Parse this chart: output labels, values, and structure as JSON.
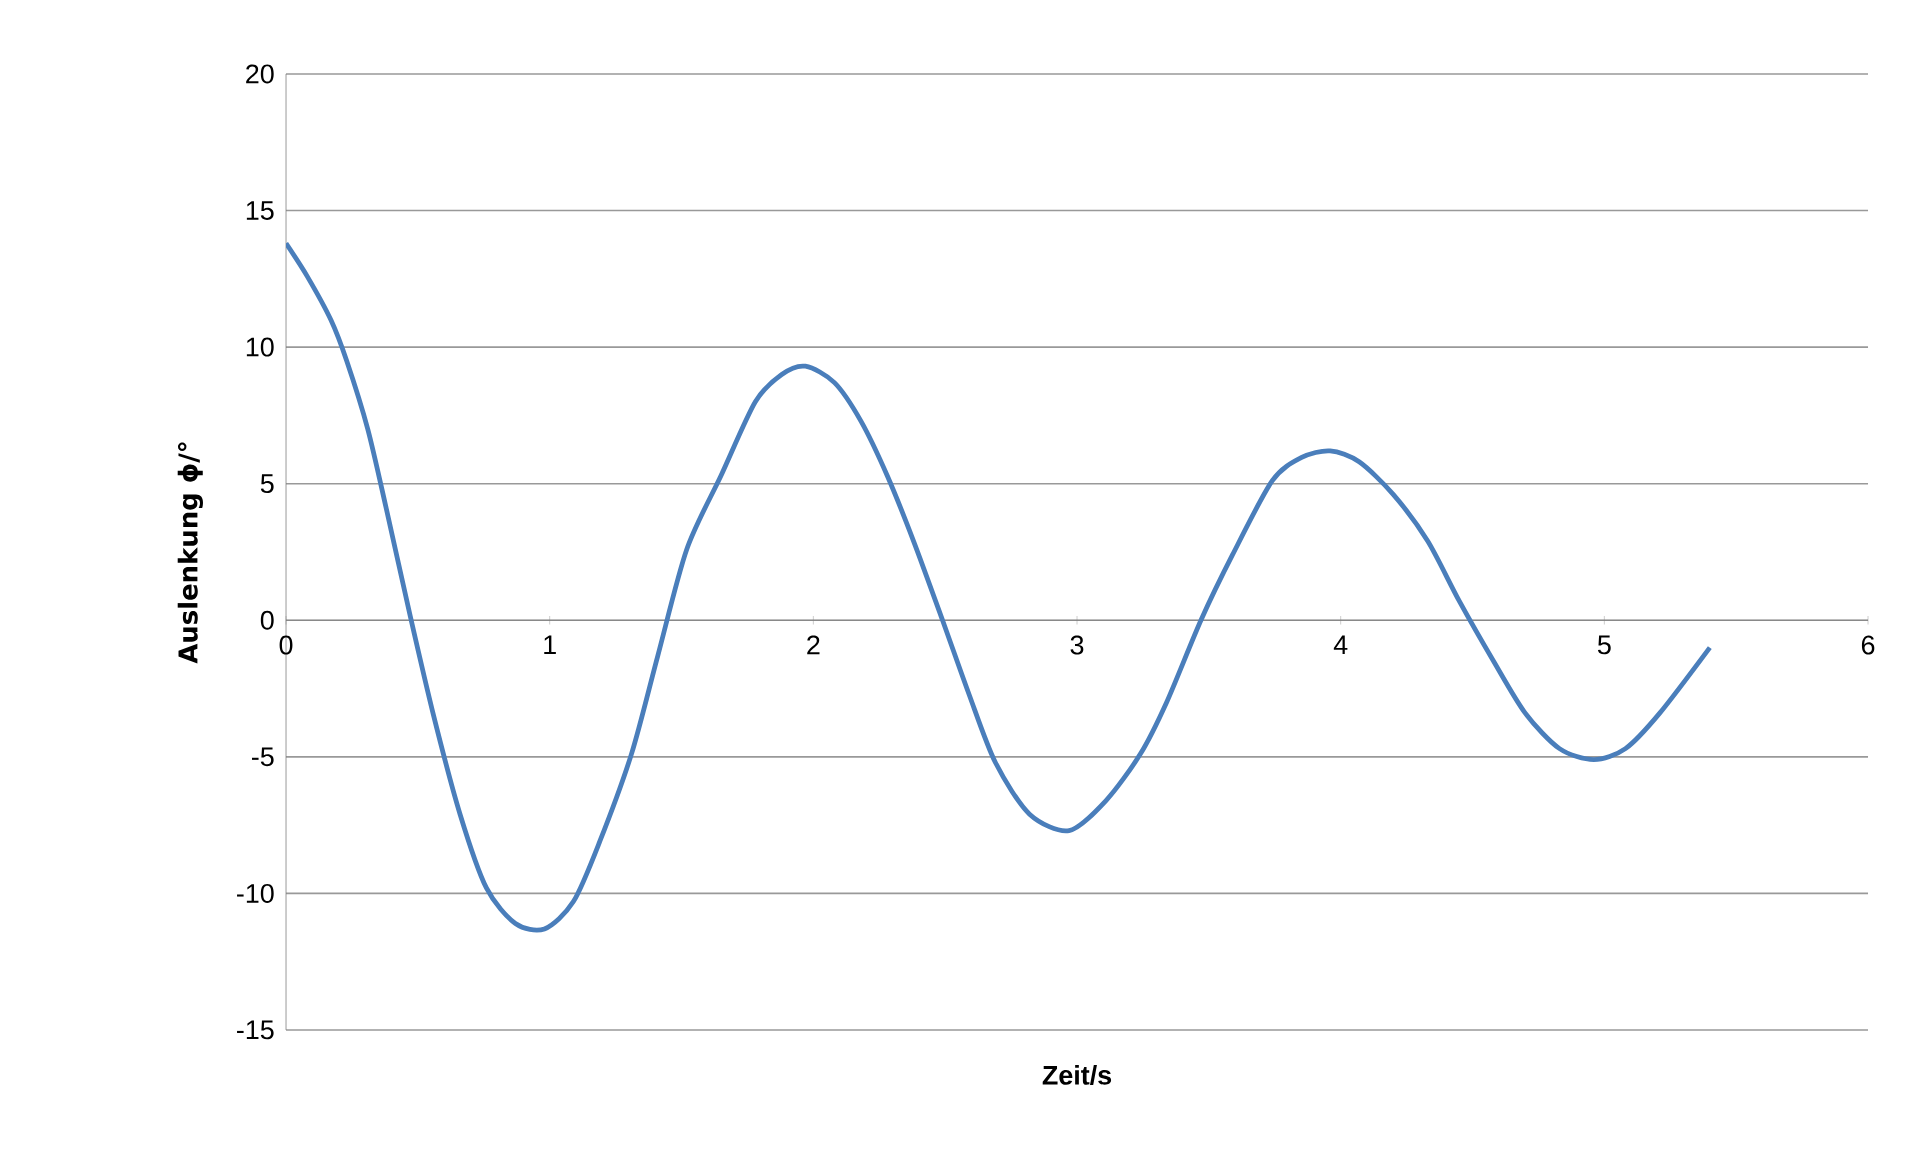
{
  "chart_data": {
    "type": "line",
    "xlabel": "Zeit/s",
    "ylabel": "Auslenkung ϕ/°",
    "xlim": [
      0,
      6
    ],
    "ylim": [
      -15,
      20
    ],
    "xticks": [
      0,
      1,
      2,
      3,
      4,
      5,
      6
    ],
    "yticks": [
      -15,
      -10,
      -5,
      0,
      5,
      10,
      15,
      20
    ],
    "grid": "y",
    "series": [
      {
        "color": "#4a7ebb",
        "x": [
          0,
          0.08,
          0.17,
          0.23,
          0.31,
          0.38,
          0.47,
          0.56,
          0.66,
          0.76,
          0.87,
          0.98,
          1.09,
          1.19,
          1.31,
          1.41,
          1.52,
          1.65,
          1.78,
          1.88,
          1.97,
          2.08,
          2.18,
          2.28,
          2.38,
          2.49,
          2.59,
          2.69,
          2.82,
          2.97,
          3.11,
          3.24,
          3.34,
          3.47,
          3.59,
          3.74,
          3.85,
          3.96,
          4.07,
          4.2,
          4.33,
          4.45,
          4.58,
          4.7,
          4.83,
          4.96,
          5.08,
          5.21,
          5.4
        ],
        "values": [
          13.8,
          12.6,
          11.0,
          9.5,
          7.0,
          4.1,
          0.2,
          -3.5,
          -7.1,
          -9.8,
          -11.1,
          -11.3,
          -10.3,
          -8.1,
          -4.9,
          -1.3,
          2.6,
          5.3,
          8.0,
          9.0,
          9.3,
          8.7,
          7.3,
          5.3,
          2.9,
          0.0,
          -2.7,
          -5.2,
          -7.1,
          -7.7,
          -6.6,
          -4.9,
          -3.0,
          0.0,
          2.4,
          5.1,
          5.95,
          6.2,
          5.8,
          4.6,
          2.9,
          0.7,
          -1.5,
          -3.4,
          -4.7,
          -5.1,
          -4.7,
          -3.4,
          -1.0
        ]
      }
    ]
  }
}
